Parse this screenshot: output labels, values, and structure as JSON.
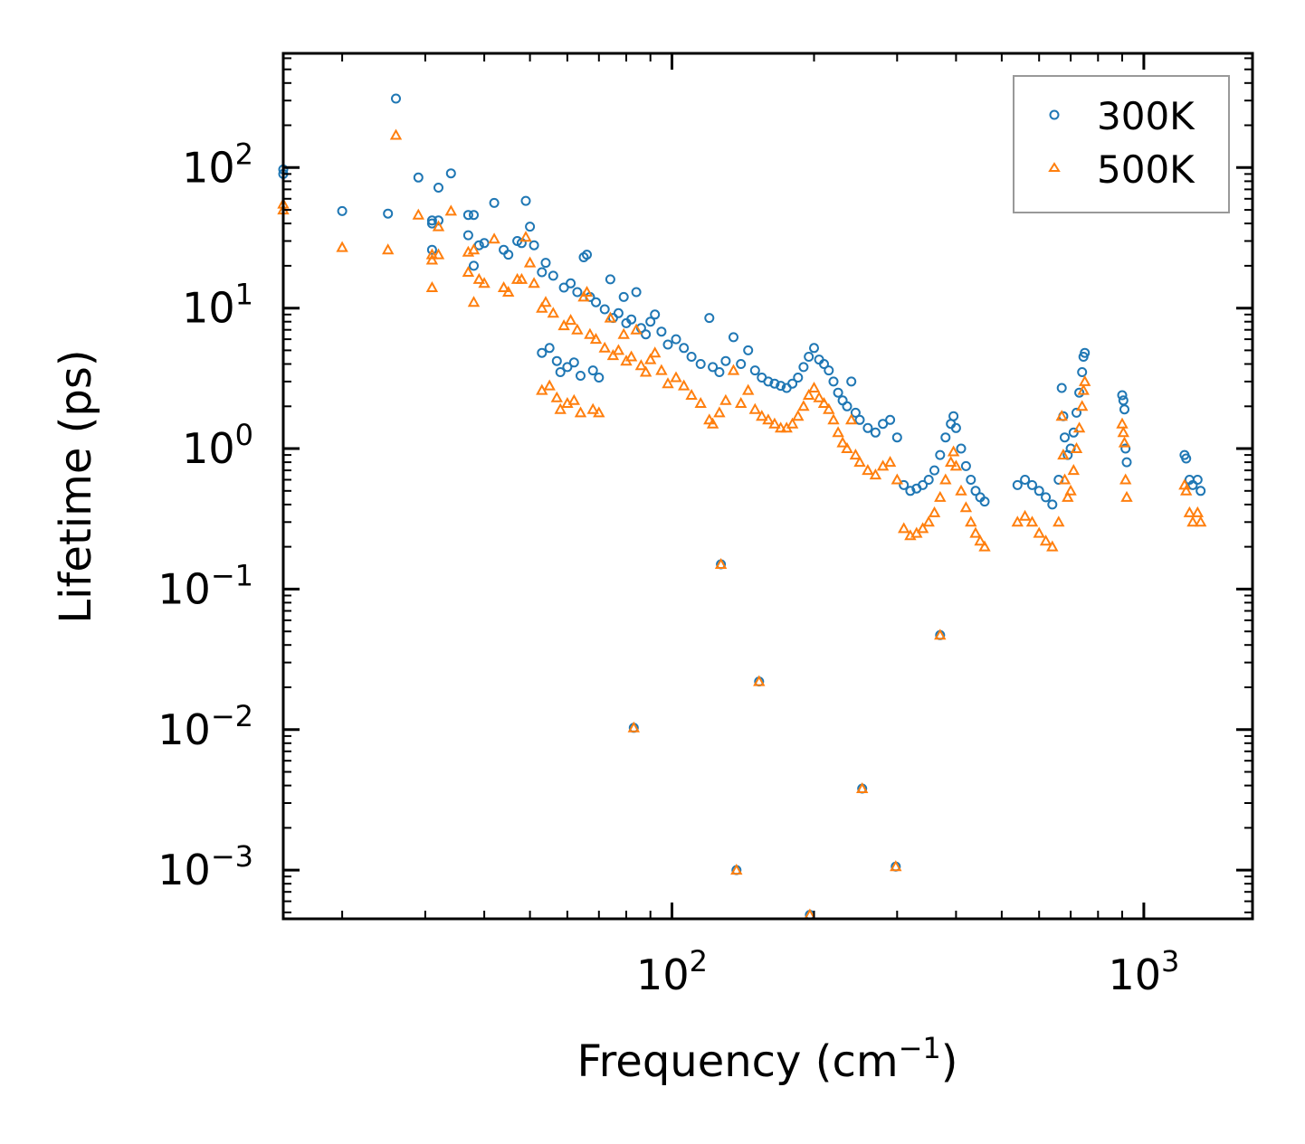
{
  "chart_data": {
    "type": "scatter",
    "title": "",
    "xlabel": "Frequency (cm",
    "xlabel_sup": "−1",
    "xlabel_end": ")",
    "ylabel": "Lifetime (ps)",
    "xscale": "log",
    "yscale": "log",
    "xlim": [
      15,
      1700
    ],
    "ylim": [
      0.00045,
      650
    ],
    "x_ticks": [
      {
        "value": 100,
        "base": "10",
        "exp": "2"
      },
      {
        "value": 1000,
        "base": "10",
        "exp": "3"
      }
    ],
    "y_ticks": [
      {
        "value": 0.001,
        "base": "10",
        "exp": "−3"
      },
      {
        "value": 0.01,
        "base": "10",
        "exp": "−2"
      },
      {
        "value": 0.1,
        "base": "10",
        "exp": "−1"
      },
      {
        "value": 1,
        "base": "10",
        "exp": "0"
      },
      {
        "value": 10,
        "base": "10",
        "exp": "1"
      },
      {
        "value": 100,
        "base": "10",
        "exp": "2"
      }
    ],
    "legend_position": "top-right",
    "series": [
      {
        "name": "300K",
        "color": "#1f77b4",
        "marker": "circle",
        "points": [
          [
            15,
            97
          ],
          [
            15,
            90
          ],
          [
            20,
            49
          ],
          [
            25,
            47
          ],
          [
            26,
            310
          ],
          [
            29,
            85
          ],
          [
            31,
            42
          ],
          [
            31,
            40
          ],
          [
            31,
            26
          ],
          [
            32,
            72
          ],
          [
            32,
            42
          ],
          [
            34,
            91
          ],
          [
            37,
            46
          ],
          [
            37,
            33
          ],
          [
            38,
            46
          ],
          [
            38,
            20
          ],
          [
            39,
            28
          ],
          [
            40,
            29
          ],
          [
            42,
            56
          ],
          [
            44,
            26
          ],
          [
            45,
            24
          ],
          [
            47,
            30
          ],
          [
            48,
            29
          ],
          [
            49,
            58
          ],
          [
            50,
            38
          ],
          [
            51,
            28
          ],
          [
            53,
            18
          ],
          [
            53,
            4.8
          ],
          [
            54,
            21
          ],
          [
            55,
            5.2
          ],
          [
            56,
            17
          ],
          [
            57,
            4.2
          ],
          [
            58,
            3.5
          ],
          [
            59,
            14
          ],
          [
            60,
            3.8
          ],
          [
            61,
            15
          ],
          [
            62,
            4.1
          ],
          [
            63,
            13
          ],
          [
            64,
            3.3
          ],
          [
            65,
            23
          ],
          [
            66,
            24
          ],
          [
            67,
            12
          ],
          [
            68,
            3.6
          ],
          [
            69,
            11
          ],
          [
            70,
            3.2
          ],
          [
            72,
            9.8
          ],
          [
            74,
            16
          ],
          [
            75,
            8.5
          ],
          [
            77,
            9.2
          ],
          [
            79,
            12
          ],
          [
            80,
            7.8
          ],
          [
            82,
            8.3
          ],
          [
            84,
            13
          ],
          [
            86,
            7.2
          ],
          [
            88,
            6.5
          ],
          [
            90,
            8.0
          ],
          [
            92,
            9.0
          ],
          [
            95,
            6.8
          ],
          [
            98,
            5.5
          ],
          [
            102,
            6.0
          ],
          [
            106,
            5.2
          ],
          [
            110,
            4.5
          ],
          [
            115,
            4.0
          ],
          [
            120,
            8.5
          ],
          [
            122,
            3.8
          ],
          [
            126,
            3.5
          ],
          [
            130,
            4.2
          ],
          [
            135,
            6.2
          ],
          [
            140,
            4.0
          ],
          [
            145,
            5.0
          ],
          [
            150,
            3.6
          ],
          [
            155,
            3.2
          ],
          [
            160,
            3.0
          ],
          [
            165,
            2.9
          ],
          [
            170,
            2.8
          ],
          [
            175,
            2.7
          ],
          [
            180,
            2.9
          ],
          [
            185,
            3.2
          ],
          [
            190,
            3.8
          ],
          [
            195,
            4.5
          ],
          [
            200,
            5.2
          ],
          [
            205,
            4.3
          ],
          [
            210,
            4.0
          ],
          [
            215,
            3.6
          ],
          [
            220,
            3.0
          ],
          [
            225,
            2.5
          ],
          [
            230,
            2.2
          ],
          [
            235,
            2.0
          ],
          [
            240,
            3.0
          ],
          [
            245,
            1.8
          ],
          [
            250,
            1.6
          ],
          [
            260,
            1.4
          ],
          [
            270,
            1.3
          ],
          [
            280,
            1.5
          ],
          [
            290,
            1.6
          ],
          [
            300,
            1.2
          ],
          [
            310,
            0.55
          ],
          [
            320,
            0.5
          ],
          [
            330,
            0.52
          ],
          [
            340,
            0.55
          ],
          [
            350,
            0.6
          ],
          [
            360,
            0.7
          ],
          [
            370,
            0.9
          ],
          [
            380,
            1.2
          ],
          [
            390,
            1.5
          ],
          [
            395,
            1.7
          ],
          [
            400,
            1.4
          ],
          [
            410,
            1.0
          ],
          [
            420,
            0.75
          ],
          [
            430,
            0.6
          ],
          [
            440,
            0.5
          ],
          [
            450,
            0.45
          ],
          [
            460,
            0.42
          ],
          [
            540,
            0.55
          ],
          [
            560,
            0.6
          ],
          [
            580,
            0.55
          ],
          [
            600,
            0.5
          ],
          [
            620,
            0.45
          ],
          [
            640,
            0.4
          ],
          [
            660,
            0.6
          ],
          [
            670,
            2.7
          ],
          [
            675,
            1.7
          ],
          [
            680,
            1.2
          ],
          [
            690,
            0.9
          ],
          [
            700,
            1.0
          ],
          [
            710,
            1.3
          ],
          [
            720,
            1.8
          ],
          [
            730,
            2.5
          ],
          [
            740,
            3.5
          ],
          [
            745,
            4.5
          ],
          [
            750,
            4.8
          ],
          [
            900,
            2.4
          ],
          [
            905,
            2.2
          ],
          [
            910,
            1.9
          ],
          [
            915,
            1.0
          ],
          [
            920,
            0.8
          ],
          [
            1220,
            0.9
          ],
          [
            1230,
            0.85
          ],
          [
            1250,
            0.6
          ],
          [
            1270,
            0.55
          ],
          [
            1300,
            0.6
          ],
          [
            1320,
            0.5
          ],
          [
            83,
            0.0103
          ],
          [
            127,
            0.15
          ],
          [
            137,
            0.001
          ],
          [
            153,
            0.022
          ],
          [
            196,
            0.00048
          ],
          [
            253,
            0.0038
          ],
          [
            298,
            0.00106
          ],
          [
            370,
            0.047
          ]
        ]
      },
      {
        "name": "500K",
        "color": "#ff7f0e",
        "marker": "triangle",
        "points": [
          [
            15,
            55
          ],
          [
            15,
            50
          ],
          [
            20,
            27
          ],
          [
            25,
            26
          ],
          [
            26,
            170
          ],
          [
            29,
            46
          ],
          [
            31,
            24
          ],
          [
            31,
            22
          ],
          [
            31,
            14
          ],
          [
            32,
            38
          ],
          [
            32,
            24
          ],
          [
            34,
            49
          ],
          [
            37,
            25
          ],
          [
            37,
            18
          ],
          [
            38,
            26
          ],
          [
            38,
            11
          ],
          [
            39,
            16
          ],
          [
            40,
            15
          ],
          [
            42,
            31
          ],
          [
            44,
            14
          ],
          [
            45,
            13
          ],
          [
            47,
            16
          ],
          [
            48,
            16
          ],
          [
            49,
            32
          ],
          [
            50,
            21
          ],
          [
            51,
            15
          ],
          [
            53,
            10
          ],
          [
            53,
            2.6
          ],
          [
            54,
            11
          ],
          [
            55,
            2.8
          ],
          [
            56,
            9.2
          ],
          [
            57,
            2.3
          ],
          [
            58,
            1.9
          ],
          [
            59,
            7.5
          ],
          [
            60,
            2.1
          ],
          [
            61,
            8.2
          ],
          [
            62,
            2.2
          ],
          [
            63,
            7.0
          ],
          [
            64,
            1.8
          ],
          [
            65,
            12
          ],
          [
            66,
            13
          ],
          [
            67,
            6.5
          ],
          [
            68,
            1.9
          ],
          [
            69,
            6.0
          ],
          [
            70,
            1.8
          ],
          [
            72,
            5.2
          ],
          [
            74,
            8.5
          ],
          [
            75,
            4.6
          ],
          [
            77,
            5.0
          ],
          [
            79,
            6.5
          ],
          [
            80,
            4.2
          ],
          [
            82,
            4.5
          ],
          [
            84,
            7.0
          ],
          [
            86,
            3.9
          ],
          [
            88,
            3.5
          ],
          [
            90,
            4.3
          ],
          [
            92,
            4.8
          ],
          [
            95,
            3.6
          ],
          [
            98,
            2.9
          ],
          [
            102,
            3.2
          ],
          [
            106,
            2.8
          ],
          [
            110,
            2.4
          ],
          [
            115,
            2.1
          ],
          [
            120,
            1.6
          ],
          [
            122,
            1.5
          ],
          [
            126,
            1.8
          ],
          [
            130,
            2.2
          ],
          [
            135,
            3.6
          ],
          [
            140,
            2.1
          ],
          [
            145,
            2.6
          ],
          [
            150,
            1.9
          ],
          [
            155,
            1.7
          ],
          [
            160,
            1.6
          ],
          [
            165,
            1.5
          ],
          [
            170,
            1.4
          ],
          [
            175,
            1.4
          ],
          [
            180,
            1.5
          ],
          [
            185,
            1.7
          ],
          [
            190,
            2.0
          ],
          [
            195,
            2.4
          ],
          [
            200,
            2.7
          ],
          [
            205,
            2.3
          ],
          [
            210,
            2.1
          ],
          [
            215,
            1.9
          ],
          [
            220,
            1.6
          ],
          [
            225,
            1.3
          ],
          [
            230,
            1.1
          ],
          [
            235,
            1.0
          ],
          [
            240,
            1.6
          ],
          [
            245,
            0.9
          ],
          [
            250,
            0.8
          ],
          [
            260,
            0.7
          ],
          [
            270,
            0.65
          ],
          [
            280,
            0.75
          ],
          [
            290,
            0.8
          ],
          [
            300,
            0.6
          ],
          [
            310,
            0.27
          ],
          [
            320,
            0.24
          ],
          [
            330,
            0.25
          ],
          [
            340,
            0.27
          ],
          [
            350,
            0.3
          ],
          [
            360,
            0.35
          ],
          [
            370,
            0.45
          ],
          [
            380,
            0.6
          ],
          [
            390,
            0.8
          ],
          [
            395,
            0.95
          ],
          [
            400,
            0.75
          ],
          [
            410,
            0.5
          ],
          [
            420,
            0.38
          ],
          [
            430,
            0.3
          ],
          [
            440,
            0.25
          ],
          [
            450,
            0.22
          ],
          [
            460,
            0.2
          ],
          [
            540,
            0.3
          ],
          [
            560,
            0.33
          ],
          [
            580,
            0.3
          ],
          [
            600,
            0.25
          ],
          [
            620,
            0.22
          ],
          [
            640,
            0.2
          ],
          [
            660,
            0.3
          ],
          [
            670,
            1.7
          ],
          [
            675,
            0.9
          ],
          [
            680,
            0.6
          ],
          [
            690,
            0.45
          ],
          [
            700,
            0.5
          ],
          [
            710,
            0.7
          ],
          [
            720,
            1.0
          ],
          [
            730,
            1.4
          ],
          [
            740,
            2.0
          ],
          [
            745,
            2.6
          ],
          [
            750,
            3.0
          ],
          [
            900,
            1.5
          ],
          [
            905,
            1.3
          ],
          [
            910,
            1.1
          ],
          [
            915,
            0.6
          ],
          [
            920,
            0.45
          ],
          [
            1220,
            0.55
          ],
          [
            1230,
            0.5
          ],
          [
            1250,
            0.35
          ],
          [
            1270,
            0.3
          ],
          [
            1300,
            0.35
          ],
          [
            1320,
            0.3
          ],
          [
            83,
            0.0103
          ],
          [
            127,
            0.15
          ],
          [
            137,
            0.001
          ],
          [
            153,
            0.022
          ],
          [
            196,
            0.00048
          ],
          [
            253,
            0.0038
          ],
          [
            298,
            0.00106
          ],
          [
            370,
            0.047
          ]
        ]
      }
    ]
  }
}
